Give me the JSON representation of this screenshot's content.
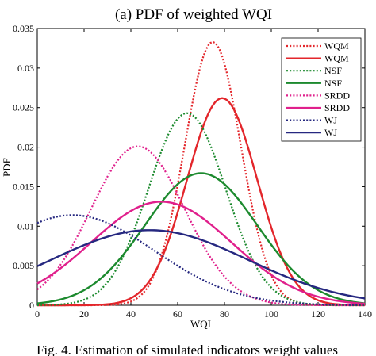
{
  "chart_data": {
    "type": "line",
    "title": "(a) PDF of weighted WQI",
    "xlabel": "WQI",
    "ylabel": "PDF",
    "xlim": [
      0,
      140
    ],
    "ylim": [
      0,
      0.035
    ],
    "xticks": [
      "0",
      "20",
      "40",
      "60",
      "80",
      "100",
      "120",
      "140"
    ],
    "yticks": [
      "0",
      "0.005",
      "0.01",
      "0.015",
      "0.02",
      "0.025",
      "0.03",
      "0.035"
    ],
    "legend_position": "top-right",
    "series": [
      {
        "name": "WQM",
        "color": "#e3262b",
        "style": "dotted",
        "mean": 75,
        "std": 12,
        "peak": 0.0333
      },
      {
        "name": "WQM",
        "color": "#e3262b",
        "style": "solid",
        "mean": 79,
        "std": 15,
        "peak": 0.0262
      },
      {
        "name": "NSF",
        "color": "#1c8a2e",
        "style": "dotted",
        "mean": 64,
        "std": 16.5,
        "peak": 0.0243
      },
      {
        "name": "NSF",
        "color": "#1c8a2e",
        "style": "solid",
        "mean": 70,
        "std": 24,
        "peak": 0.0167
      },
      {
        "name": "SRDD",
        "color": "#e0208c",
        "style": "dotted",
        "mean": 43,
        "std": 20,
        "peak": 0.0201
      },
      {
        "name": "SRDD",
        "color": "#e0208c",
        "style": "solid",
        "mean": 53,
        "std": 30,
        "peak": 0.0131
      },
      {
        "name": "WJ",
        "color": "#262880",
        "style": "dotted",
        "mean": 15,
        "std": 35,
        "peak": 0.0114
      },
      {
        "name": "WJ",
        "color": "#262880",
        "style": "solid",
        "mean": 48,
        "std": 42,
        "peak": 0.0095
      }
    ]
  },
  "caption": "Fig. 4.   Estimation of simulated indicators weight values"
}
